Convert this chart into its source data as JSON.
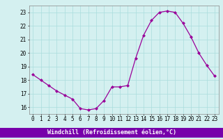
{
  "hours": [
    0,
    1,
    2,
    3,
    4,
    5,
    6,
    7,
    8,
    9,
    10,
    11,
    12,
    13,
    14,
    15,
    16,
    17,
    18,
    19,
    20,
    21,
    22,
    23
  ],
  "values": [
    18.4,
    18.0,
    17.6,
    17.2,
    16.9,
    16.6,
    15.9,
    15.8,
    15.9,
    16.5,
    17.5,
    17.5,
    17.6,
    19.6,
    21.3,
    22.4,
    23.0,
    23.1,
    23.0,
    22.2,
    21.2,
    20.0,
    19.1,
    18.3
  ],
  "line_color": "#990099",
  "marker": "D",
  "markersize": 2.0,
  "linewidth": 0.9,
  "bg_color": "#d4f0f0",
  "grid_color": "#aadddd",
  "xlabel": "Windchill (Refroidissement éolien,°C)",
  "xlabel_bg": "#7700aa",
  "xlabel_fg": "#ffffff",
  "ylim": [
    15.5,
    23.5
  ],
  "yticks": [
    16,
    17,
    18,
    19,
    20,
    21,
    22,
    23
  ],
  "xticks": [
    0,
    1,
    2,
    3,
    4,
    5,
    6,
    7,
    8,
    9,
    10,
    11,
    12,
    13,
    14,
    15,
    16,
    17,
    18,
    19,
    20,
    21,
    22,
    23
  ],
  "tick_fontsize": 5.5,
  "xlabel_fontsize": 6.0
}
